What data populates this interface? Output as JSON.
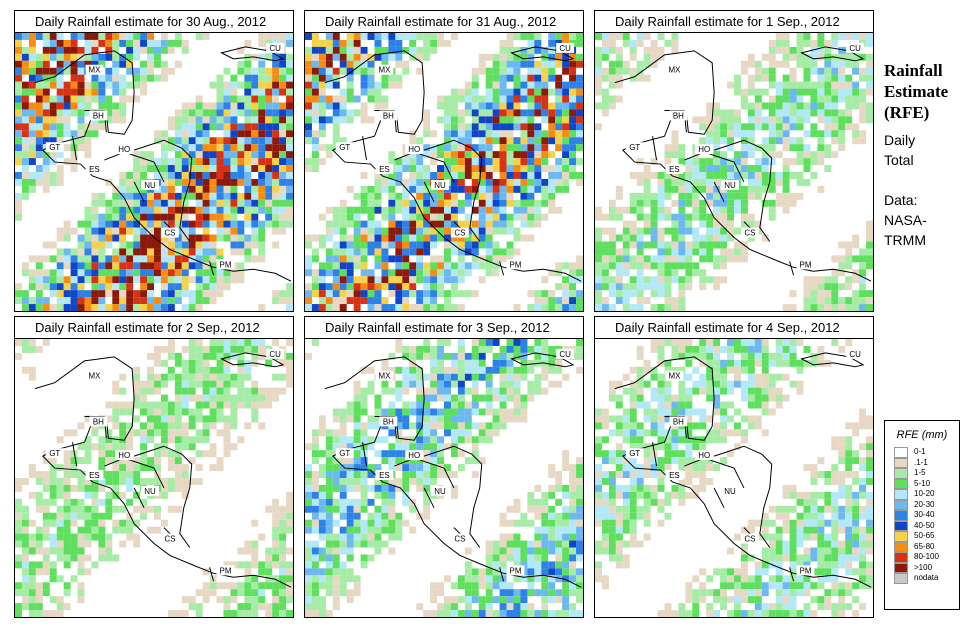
{
  "panels": [
    {
      "title": "Daily Rainfall estimate for  30 Aug., 2012",
      "intensity": 1.0
    },
    {
      "title": "Daily Rainfall estimate for  31 Aug., 2012",
      "intensity": 0.9
    },
    {
      "title": "Daily Rainfall estimate for  1 Sep., 2012",
      "intensity": 0.35
    },
    {
      "title": "Daily Rainfall estimate for  2 Sep., 2012",
      "intensity": 0.25
    },
    {
      "title": "Daily Rainfall estimate for  3 Sep., 2012",
      "intensity": 0.45
    },
    {
      "title": "Daily Rainfall estimate for  4 Sep., 2012",
      "intensity": 0.35
    }
  ],
  "country_labels": [
    "MX",
    "CU",
    "BH",
    "GT",
    "HO",
    "ES",
    "NU",
    "CS",
    "PM"
  ],
  "side": {
    "title_line1": "Rainfall",
    "title_line2": "Estimate",
    "title_line3": "(RFE)",
    "daily_line1": "Daily",
    "daily_line2": "Total",
    "data_line1": "Data:",
    "data_line2": "NASA-",
    "data_line3": "TRMM"
  },
  "legend": {
    "title": "RFE (mm)",
    "entries": [
      {
        "label": "0-1",
        "color": "#ffffff"
      },
      {
        "label": ".1-1",
        "color": "#e7d8c4"
      },
      {
        "label": "1-5",
        "color": "#a6eba6"
      },
      {
        "label": "5-10",
        "color": "#5ee05e"
      },
      {
        "label": "10-20",
        "color": "#b2e8f8"
      },
      {
        "label": "20-30",
        "color": "#6cb8f0"
      },
      {
        "label": "30-40",
        "color": "#2c82e6"
      },
      {
        "label": "40-50",
        "color": "#1045c8"
      },
      {
        "label": "50-65",
        "color": "#f6d24a"
      },
      {
        "label": "65-80",
        "color": "#f58c14"
      },
      {
        "label": "80-100",
        "color": "#d83214"
      },
      {
        "label": ">100",
        "color": "#8c1a0a"
      },
      {
        "label": "nodata",
        "color": "#c8c8c8"
      }
    ]
  }
}
